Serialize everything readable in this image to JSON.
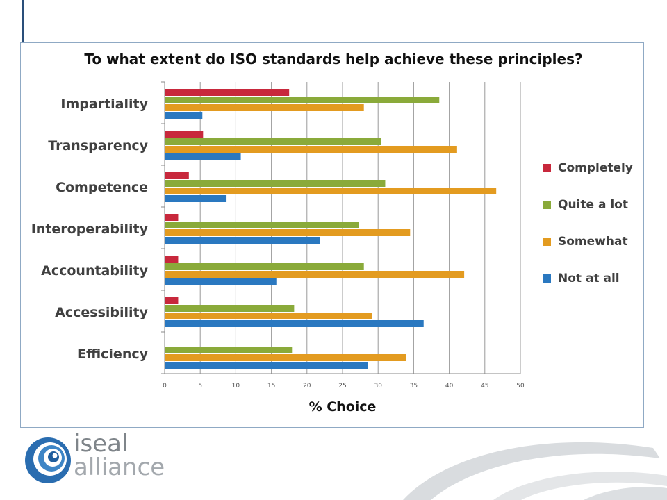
{
  "slide": {
    "title": "To what extent do ISO standards help achieve these principles?",
    "logo": {
      "line1": "iseal",
      "line2": "alliance"
    }
  },
  "chart_data": {
    "type": "bar",
    "orientation": "horizontal",
    "title": "To what extent do ISO standards help achieve these principles?",
    "xlabel": "% Choice",
    "ylabel": "",
    "xlim": [
      0,
      50
    ],
    "xticks": [
      0,
      5,
      10,
      15,
      20,
      25,
      30,
      35,
      40,
      45,
      50
    ],
    "grid": true,
    "legend_position": "right",
    "categories": [
      "Impartiality",
      "Transparency",
      "Competence",
      "Interoperability",
      "Accountability",
      "Accessibility",
      "Efficiency"
    ],
    "series": [
      {
        "name": "Completely",
        "color": "#c8283c",
        "values": [
          17.5,
          5.4,
          3.4,
          1.9,
          1.9,
          1.9,
          0
        ]
      },
      {
        "name": "Quite a lot",
        "color": "#8aaa3a",
        "values": [
          38.6,
          30.4,
          31,
          27.3,
          28,
          18.2,
          17.9
        ]
      },
      {
        "name": "Somewhat",
        "color": "#e39b20",
        "values": [
          28,
          41.1,
          46.6,
          34.5,
          42.1,
          29.1,
          33.9
        ]
      },
      {
        "name": "Not at all",
        "color": "#2a78c0",
        "values": [
          5.3,
          10.7,
          8.6,
          21.8,
          15.7,
          36.4,
          28.6
        ]
      }
    ]
  }
}
